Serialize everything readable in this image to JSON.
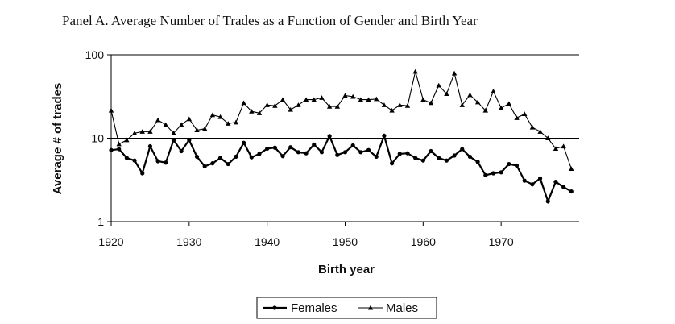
{
  "chart_data": {
    "type": "line",
    "title": "Panel A.  Average Number of Trades as a Function of Gender and Birth Year",
    "xlabel": "Birth year",
    "ylabel": "Average # of trades",
    "yscale": "log",
    "ylim": [
      1,
      100
    ],
    "xlim": [
      1920,
      1980
    ],
    "xticks": [
      "1920",
      "1930",
      "1940",
      "1950",
      "1960",
      "1970"
    ],
    "yticks": [
      "1",
      "10",
      "100"
    ],
    "gridlines": [
      10
    ],
    "legend_position": "bottom-center",
    "colors": {
      "line": "#000000"
    },
    "x": [
      1920,
      1921,
      1922,
      1923,
      1924,
      1925,
      1926,
      1927,
      1928,
      1929,
      1930,
      1931,
      1932,
      1933,
      1934,
      1935,
      1936,
      1937,
      1938,
      1939,
      1940,
      1941,
      1942,
      1943,
      1944,
      1945,
      1946,
      1947,
      1948,
      1949,
      1950,
      1951,
      1952,
      1953,
      1954,
      1955,
      1956,
      1957,
      1958,
      1959,
      1960,
      1961,
      1962,
      1963,
      1964,
      1965,
      1966,
      1967,
      1968,
      1969,
      1970,
      1971,
      1972,
      1973,
      1974,
      1975,
      1976,
      1977,
      1978,
      1979
    ],
    "series": [
      {
        "name": "Females",
        "marker": "circle",
        "values": [
          7.2,
          7.4,
          5.8,
          5.4,
          3.8,
          8.0,
          5.3,
          5.1,
          9.5,
          7.0,
          9.5,
          6.0,
          4.6,
          5.0,
          5.8,
          4.9,
          6.0,
          8.8,
          5.9,
          6.5,
          7.5,
          7.7,
          6.1,
          7.8,
          6.8,
          6.6,
          8.4,
          6.8,
          10.6,
          6.3,
          6.8,
          8.2,
          6.8,
          7.2,
          6.0,
          10.7,
          5.0,
          6.5,
          6.6,
          5.8,
          5.4,
          7.0,
          5.8,
          5.4,
          6.2,
          7.4,
          6.0,
          5.2,
          3.6,
          3.8,
          3.9,
          4.9,
          4.7,
          3.1,
          2.8,
          3.3,
          1.75,
          3.0,
          2.6,
          2.3
        ]
      },
      {
        "name": "Males",
        "marker": "triangle",
        "values": [
          21.5,
          8.5,
          9.5,
          11.5,
          12.0,
          12.0,
          16.5,
          14.5,
          11.5,
          14.5,
          17.0,
          12.5,
          13.0,
          19.0,
          18.0,
          15.0,
          15.5,
          26.5,
          21.0,
          20.0,
          25.0,
          24.5,
          29.0,
          22.0,
          25.0,
          29.0,
          29.0,
          30.5,
          24.0,
          24.0,
          32.5,
          31.5,
          29.0,
          29.0,
          29.5,
          25.0,
          21.5,
          25.0,
          24.5,
          63.0,
          29.0,
          26.5,
          43.0,
          34.0,
          60.0,
          25.0,
          33.0,
          27.0,
          21.5,
          36.5,
          23.0,
          26.0,
          17.5,
          19.5,
          13.5,
          12.0,
          10.0,
          7.5,
          8.0,
          4.3
        ]
      }
    ]
  }
}
